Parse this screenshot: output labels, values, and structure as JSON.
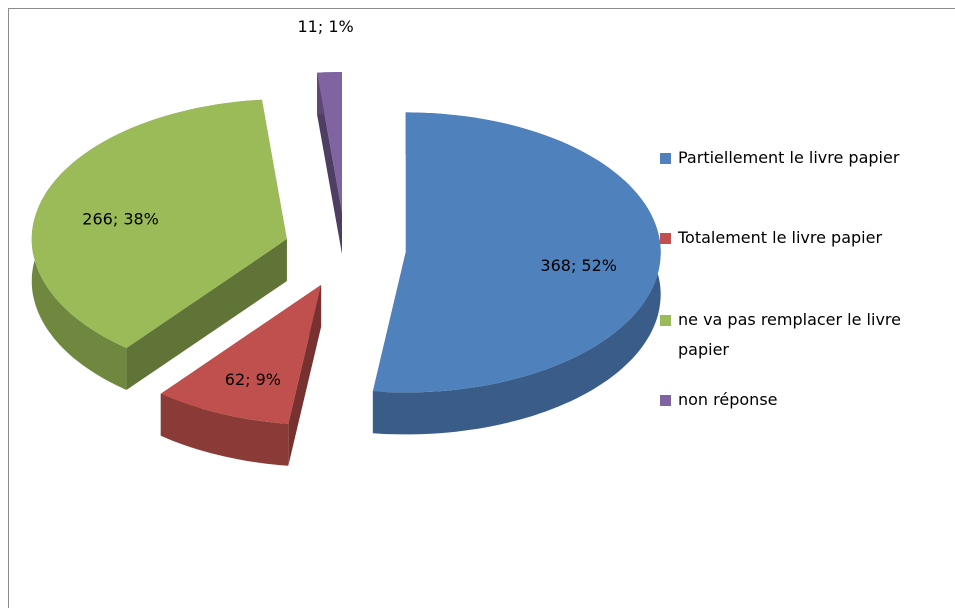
{
  "chart_data": {
    "type": "pie",
    "categories": [
      "Partiellement le livre papier",
      "Totalement le livre papier",
      "ne va pas remplacer le livre papier",
      "non réponse"
    ],
    "values": [
      368,
      62,
      266,
      11
    ],
    "value_labels": [
      "368; 52%",
      "62; 9%",
      "266; 38%",
      "11; 1%"
    ],
    "colors": [
      "#4f81bd",
      "#c0504d",
      "#9bbb59",
      "#8064a2"
    ],
    "legend": "right"
  }
}
